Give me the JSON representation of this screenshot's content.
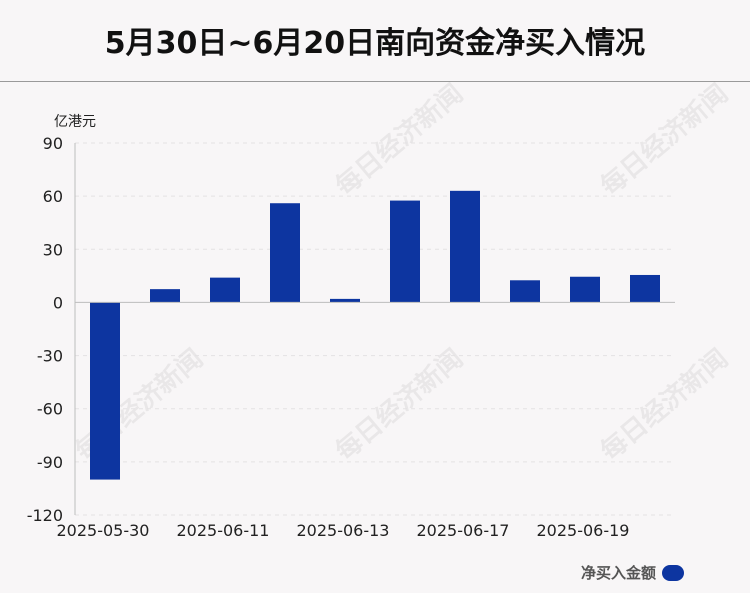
{
  "title": "5月30日~6月20日南向资金净买入情况",
  "watermark": "每日经济新闻",
  "colors": {
    "bar": "#0d35a0",
    "background": "#f8f6f7"
  },
  "chart_data": {
    "type": "bar",
    "title": "5月30日~6月20日南向资金净买入情况",
    "ylabel": "亿港元",
    "ylim": [
      -120,
      90
    ],
    "yticks": [
      90,
      60,
      30,
      0,
      -30,
      -60,
      -90,
      -120
    ],
    "x_tick_labels": [
      "2025-05-30",
      "2025-06-11",
      "2025-06-13",
      "2025-06-17",
      "2025-06-19"
    ],
    "x_tick_positions": [
      0,
      2,
      4,
      6,
      8
    ],
    "grid": true,
    "legend_position": "bottom-right",
    "series": [
      {
        "name": "净买入金额",
        "values": [
          -100,
          7.5,
          14,
          56,
          2,
          57.5,
          63,
          12.5,
          14.5,
          15.5
        ]
      }
    ]
  }
}
